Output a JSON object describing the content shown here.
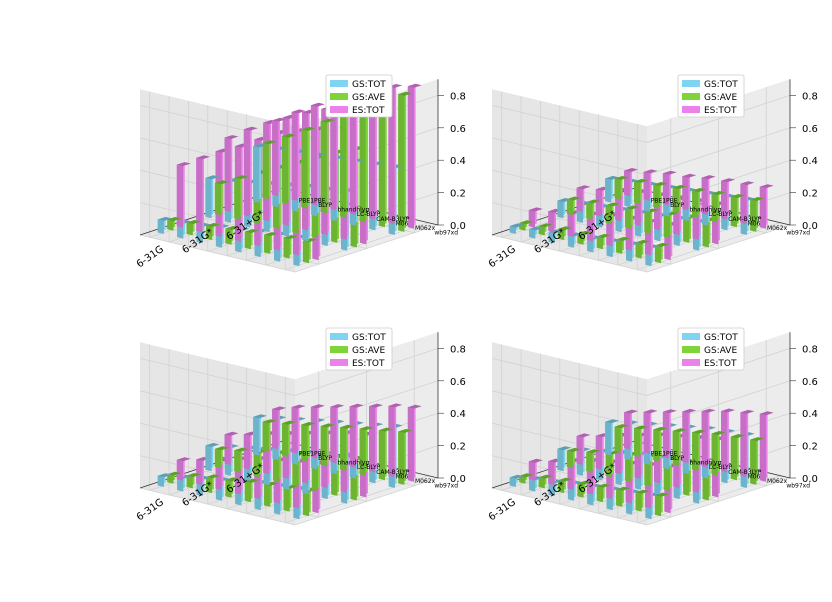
{
  "figure": {
    "layout": "2x2 grid of 3D bar charts"
  },
  "colors": {
    "GS_TOT": "#7fd4f0",
    "GS_AVE": "#7fd43a",
    "ES_TOT": "#ea82ea",
    "pane": "#e9e9e9",
    "grid": "#d2d2d2"
  },
  "chart_data": [
    {
      "type": "bar3d",
      "title": "",
      "xlabel": "",
      "ylabel": "",
      "zlabel": "",
      "x_categories": [
        "6-31G",
        "6-31G*",
        "6-31+G*"
      ],
      "y_categories": [
        "PBE1PBE",
        "BLYP",
        "bhandhlyp",
        "LC-BLYP",
        "CAM-B3LYP",
        "M06",
        "M062x",
        "wb97xd"
      ],
      "z_ticks": [
        "0.0",
        "0.2",
        "0.4",
        "0.6",
        "0.8"
      ],
      "zlim": [
        0,
        0.9
      ],
      "legend": [
        "GS:TOT",
        "GS:AVE",
        "ES:TOT"
      ],
      "legend_position": "top-right",
      "series": [
        {
          "name": "GS:TOT",
          "values": [
            [
              0.08,
              0.09,
              0.1,
              0.12,
              0.13,
              0.15,
              0.16,
              0.17
            ],
            [
              0.24,
              0.25,
              0.27,
              0.29,
              0.31,
              0.33,
              0.34,
              0.36
            ],
            [
              0.34,
              0.35,
              0.36,
              0.37,
              0.38,
              0.39,
              0.4,
              0.41
            ]
          ]
        },
        {
          "name": "GS:AVE",
          "values": [
            [
              0.06,
              0.07,
              0.08,
              0.09,
              0.1,
              0.11,
              0.12,
              0.13
            ],
            [
              0.19,
              0.25,
              0.31,
              0.37,
              0.43,
              0.49,
              0.55,
              0.6
            ],
            [
              0.34,
              0.41,
              0.48,
              0.56,
              0.63,
              0.7,
              0.77,
              0.84
            ]
          ]
        },
        {
          "name": "ES:TOT",
          "values": [
            [
              0.38,
              0.45,
              0.52,
              0.58,
              0.65,
              0.72,
              0.76,
              0.8
            ],
            [
              0.45,
              0.53,
              0.6,
              0.66,
              0.72,
              0.77,
              0.82,
              0.86
            ],
            [
              0.46,
              0.54,
              0.61,
              0.68,
              0.74,
              0.79,
              0.84,
              0.87
            ]
          ]
        }
      ]
    },
    {
      "type": "bar3d",
      "title": "",
      "xlabel": "",
      "ylabel": "",
      "zlabel": "",
      "x_categories": [
        "6-31G",
        "6-31G*",
        "6-31+G*"
      ],
      "y_categories": [
        "PBE1PBE",
        "BLYP",
        "bhandhlyp",
        "LC-BLYP",
        "CAM-B3LYP",
        "M06",
        "M062x",
        "wb97xd"
      ],
      "z_ticks": [
        "0.0",
        "0.2",
        "0.4",
        "0.6",
        "0.8"
      ],
      "zlim": [
        0,
        0.9
      ],
      "legend": [
        "GS:TOT",
        "GS:AVE",
        "ES:TOT"
      ],
      "legend_position": "top-right",
      "series": [
        {
          "name": "GS:TOT",
          "values": [
            [
              0.04,
              0.05,
              0.06,
              0.07,
              0.08,
              0.09,
              0.1,
              0.11
            ],
            [
              0.1,
              0.11,
              0.12,
              0.13,
              0.14,
              0.15,
              0.16,
              0.17
            ],
            [
              0.14,
              0.15,
              0.16,
              0.17,
              0.18,
              0.19,
              0.2,
              0.21
            ]
          ]
        },
        {
          "name": "GS:AVE",
          "values": [
            [
              0.04,
              0.05,
              0.06,
              0.06,
              0.07,
              0.08,
              0.09,
              0.1
            ],
            [
              0.09,
              0.1,
              0.11,
              0.12,
              0.13,
              0.14,
              0.15,
              0.16
            ],
            [
              0.12,
              0.13,
              0.14,
              0.15,
              0.16,
              0.17,
              0.18,
              0.19
            ]
          ]
        },
        {
          "name": "ES:TOT",
          "values": [
            [
              0.1,
              0.12,
              0.14,
              0.16,
              0.18,
              0.19,
              0.2,
              0.21
            ],
            [
              0.14,
              0.16,
              0.18,
              0.2,
              0.21,
              0.22,
              0.23,
              0.24
            ],
            [
              0.15,
              0.17,
              0.19,
              0.2,
              0.22,
              0.23,
              0.24,
              0.25
            ]
          ]
        }
      ]
    },
    {
      "type": "bar3d",
      "title": "",
      "xlabel": "",
      "ylabel": "",
      "zlabel": "",
      "x_categories": [
        "6-31G",
        "6-31G*",
        "6-31+G*"
      ],
      "y_categories": [
        "PBE1PBE",
        "BLYP",
        "bhandhlyp",
        "LC-BLYP",
        "CAM-B3LYP",
        "M06",
        "M062x",
        "wb97xd"
      ],
      "z_ticks": [
        "0.0",
        "0.2",
        "0.4",
        "0.6",
        "0.8"
      ],
      "zlim": [
        0,
        0.9
      ],
      "legend": [
        "GS:TOT",
        "GS:AVE",
        "ES:TOT"
      ],
      "legend_position": "top-right",
      "series": [
        {
          "name": "GS:TOT",
          "values": [
            [
              0.06,
              0.08,
              0.1,
              0.12,
              0.14,
              0.16,
              0.17,
              0.18
            ],
            [
              0.15,
              0.17,
              0.19,
              0.21,
              0.23,
              0.25,
              0.27,
              0.29
            ],
            [
              0.23,
              0.25,
              0.27,
              0.29,
              0.31,
              0.33,
              0.35,
              0.37
            ]
          ]
        },
        {
          "name": "GS:AVE",
          "values": [
            [
              0.05,
              0.07,
              0.09,
              0.1,
              0.12,
              0.13,
              0.14,
              0.15
            ],
            [
              0.11,
              0.13,
              0.15,
              0.17,
              0.19,
              0.21,
              0.23,
              0.25
            ],
            [
              0.18,
              0.2,
              0.22,
              0.24,
              0.26,
              0.28,
              0.3,
              0.32
            ]
          ]
        },
        {
          "name": "ES:TOT",
          "values": [
            [
              0.12,
              0.15,
              0.18,
              0.21,
              0.24,
              0.26,
              0.28,
              0.3
            ],
            [
              0.18,
              0.21,
              0.24,
              0.27,
              0.3,
              0.33,
              0.36,
              0.38
            ],
            [
              0.24,
              0.28,
              0.31,
              0.34,
              0.37,
              0.4,
              0.43,
              0.45
            ]
          ]
        }
      ]
    },
    {
      "type": "bar3d",
      "title": "",
      "xlabel": "",
      "ylabel": "",
      "zlabel": "",
      "x_categories": [
        "6-31G",
        "6-31G*",
        "6-31+G*"
      ],
      "y_categories": [
        "PBE1PBE",
        "BLYP",
        "bhandhlyp",
        "LC-BLYP",
        "CAM-B3LYP",
        "M06",
        "M062x",
        "wb97xd"
      ],
      "z_ticks": [
        "0.0",
        "0.2",
        "0.4",
        "0.6",
        "0.8"
      ],
      "zlim": [
        0,
        0.9
      ],
      "legend": [
        "GS:TOT",
        "GS:AVE",
        "ES:TOT"
      ],
      "legend_position": "top-right",
      "series": [
        {
          "name": "GS:TOT",
          "values": [
            [
              0.05,
              0.07,
              0.08,
              0.1,
              0.11,
              0.12,
              0.13,
              0.14
            ],
            [
              0.13,
              0.15,
              0.17,
              0.19,
              0.21,
              0.22,
              0.23,
              0.24
            ],
            [
              0.2,
              0.22,
              0.24,
              0.26,
              0.28,
              0.3,
              0.31,
              0.32
            ]
          ]
        },
        {
          "name": "GS:AVE",
          "values": [
            [
              0.04,
              0.06,
              0.07,
              0.08,
              0.09,
              0.1,
              0.11,
              0.12
            ],
            [
              0.1,
              0.12,
              0.14,
              0.16,
              0.18,
              0.19,
              0.2,
              0.21
            ],
            [
              0.15,
              0.17,
              0.19,
              0.21,
              0.23,
              0.25,
              0.26,
              0.27
            ]
          ]
        },
        {
          "name": "ES:TOT",
          "values": [
            [
              0.11,
              0.14,
              0.17,
              0.2,
              0.22,
              0.24,
              0.26,
              0.28
            ],
            [
              0.17,
              0.2,
              0.23,
              0.26,
              0.29,
              0.31,
              0.33,
              0.35
            ],
            [
              0.22,
              0.25,
              0.28,
              0.31,
              0.34,
              0.37,
              0.39,
              0.41
            ]
          ]
        }
      ]
    }
  ]
}
